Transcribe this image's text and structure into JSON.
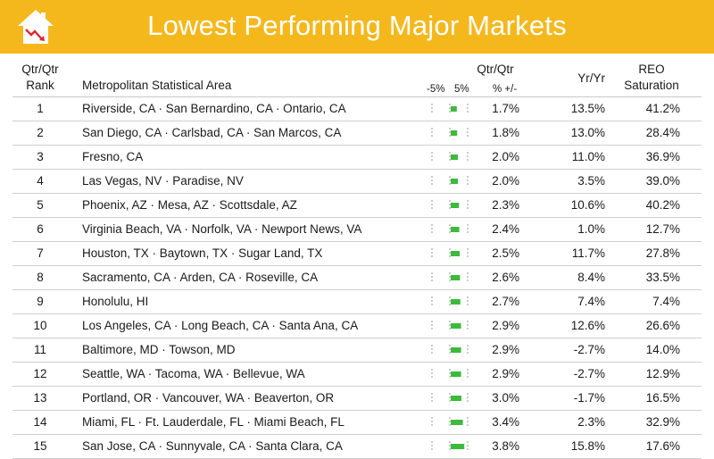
{
  "header": {
    "title": "Lowest Performing Major Markets",
    "logo_icon": "house-declining-arrow-icon"
  },
  "columns": {
    "rank_line1": "Qtr/Qtr",
    "rank_line2": "Rank",
    "msa": "Metropolitan Statistical Area",
    "qq_title": "Qtr/Qtr",
    "qq_minus": "-5%",
    "qq_plus": "5%",
    "qq_pct": "% +/-",
    "yy": "Yr/Yr",
    "reo_line1": "REO",
    "reo_line2": "Saturation"
  },
  "colors": {
    "header": "#f5b81c",
    "bar": "#3dba3c",
    "axis": "#9a9a9a"
  },
  "bar_scale": {
    "min": -5,
    "max": 5
  },
  "rows": [
    {
      "rank": "1",
      "msa": "Riverside, CA · San Bernardino, CA · Ontario, CA",
      "qq": "1.7%",
      "qq_value": 1.7,
      "yy": "13.5%",
      "reo": "41.2%"
    },
    {
      "rank": "2",
      "msa": "San Diego, CA · Carlsbad, CA · San Marcos, CA",
      "qq": "1.8%",
      "qq_value": 1.8,
      "yy": "13.0%",
      "reo": "28.4%"
    },
    {
      "rank": "3",
      "msa": "Fresno, CA",
      "qq": "2.0%",
      "qq_value": 2.0,
      "yy": "11.0%",
      "reo": "36.9%"
    },
    {
      "rank": "4",
      "msa": "Las Vegas, NV · Paradise, NV",
      "qq": "2.0%",
      "qq_value": 2.0,
      "yy": "3.5%",
      "reo": "39.0%"
    },
    {
      "rank": "5",
      "msa": "Phoenix, AZ · Mesa, AZ · Scottsdale, AZ",
      "qq": "2.3%",
      "qq_value": 2.3,
      "yy": "10.6%",
      "reo": "40.2%"
    },
    {
      "rank": "6",
      "msa": "Virginia Beach, VA · Norfolk, VA · Newport News, VA",
      "qq": "2.4%",
      "qq_value": 2.4,
      "yy": "1.0%",
      "reo": "12.7%"
    },
    {
      "rank": "7",
      "msa": "Houston, TX · Baytown, TX · Sugar Land, TX",
      "qq": "2.5%",
      "qq_value": 2.5,
      "yy": "11.7%",
      "reo": "27.8%"
    },
    {
      "rank": "8",
      "msa": "Sacramento, CA · Arden, CA · Roseville, CA",
      "qq": "2.6%",
      "qq_value": 2.6,
      "yy": "8.4%",
      "reo": "33.5%"
    },
    {
      "rank": "9",
      "msa": "Honolulu, HI",
      "qq": "2.7%",
      "qq_value": 2.7,
      "yy": "7.4%",
      "reo": "7.4%"
    },
    {
      "rank": "10",
      "msa": "Los Angeles, CA · Long Beach, CA · Santa Ana, CA",
      "qq": "2.9%",
      "qq_value": 2.9,
      "yy": "12.6%",
      "reo": "26.6%"
    },
    {
      "rank": "11",
      "msa": "Baltimore, MD · Towson, MD",
      "qq": "2.9%",
      "qq_value": 2.9,
      "yy": "-2.7%",
      "reo": "14.0%"
    },
    {
      "rank": "12",
      "msa": "Seattle, WA · Tacoma, WA · Bellevue, WA",
      "qq": "2.9%",
      "qq_value": 2.9,
      "yy": "-2.7%",
      "reo": "12.9%"
    },
    {
      "rank": "13",
      "msa": "Portland, OR · Vancouver, WA · Beaverton, OR",
      "qq": "3.0%",
      "qq_value": 3.0,
      "yy": "-1.7%",
      "reo": "16.5%"
    },
    {
      "rank": "14",
      "msa": "Miami, FL · Ft. Lauderdale, FL · Miami Beach, FL",
      "qq": "3.4%",
      "qq_value": 3.4,
      "yy": "2.3%",
      "reo": "32.9%"
    },
    {
      "rank": "15",
      "msa": "San Jose, CA · Sunnyvale, CA · Santa Clara, CA",
      "qq": "3.8%",
      "qq_value": 3.8,
      "yy": "15.8%",
      "reo": "17.6%"
    }
  ]
}
